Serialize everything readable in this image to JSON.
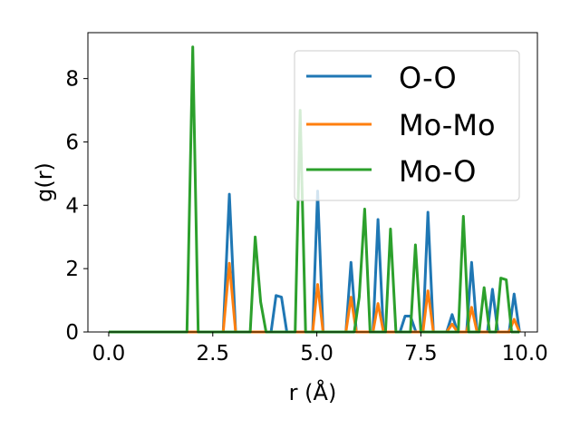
{
  "chart_data": {
    "type": "line",
    "title": "",
    "xlabel": "r (Å)",
    "ylabel": "g(r)",
    "xlim": [
      -0.5,
      10.3
    ],
    "ylim": [
      0,
      9.45
    ],
    "xticks": [
      0.0,
      2.5,
      5.0,
      7.5,
      10.0
    ],
    "xtick_labels": [
      "0.0",
      "2.5",
      "5.0",
      "7.5",
      "10.0"
    ],
    "yticks": [
      0,
      2,
      4,
      6,
      8
    ],
    "ytick_labels": [
      "0",
      "2",
      "4",
      "6",
      "8"
    ],
    "grid": false,
    "legend_position": "top-right",
    "series": [
      {
        "name": "O-O",
        "color": "#1f77b4",
        "points": [
          [
            0.0,
            0
          ],
          [
            2.75,
            0
          ],
          [
            2.9,
            4.35
          ],
          [
            3.05,
            0
          ],
          [
            3.9,
            0
          ],
          [
            4.02,
            1.15
          ],
          [
            4.15,
            1.1
          ],
          [
            4.28,
            0
          ],
          [
            4.9,
            0
          ],
          [
            5.02,
            4.45
          ],
          [
            5.15,
            0
          ],
          [
            5.7,
            0
          ],
          [
            5.82,
            2.2
          ],
          [
            5.95,
            0
          ],
          [
            6.35,
            0
          ],
          [
            6.47,
            3.55
          ],
          [
            6.6,
            0
          ],
          [
            7.0,
            0
          ],
          [
            7.12,
            0.5
          ],
          [
            7.25,
            0.5
          ],
          [
            7.38,
            0
          ],
          [
            7.55,
            0
          ],
          [
            7.67,
            3.78
          ],
          [
            7.8,
            0
          ],
          [
            8.12,
            0
          ],
          [
            8.25,
            0.55
          ],
          [
            8.38,
            0
          ],
          [
            8.6,
            0
          ],
          [
            8.72,
            2.2
          ],
          [
            8.85,
            0
          ],
          [
            9.1,
            0
          ],
          [
            9.22,
            1.35
          ],
          [
            9.35,
            0
          ],
          [
            9.62,
            0
          ],
          [
            9.74,
            1.2
          ],
          [
            9.87,
            0
          ]
        ]
      },
      {
        "name": "Mo-Mo",
        "color": "#ff7f0e",
        "points": [
          [
            0.0,
            0
          ],
          [
            2.75,
            0
          ],
          [
            2.9,
            2.17
          ],
          [
            3.05,
            0
          ],
          [
            4.9,
            0
          ],
          [
            5.02,
            1.5
          ],
          [
            5.15,
            0
          ],
          [
            5.7,
            0
          ],
          [
            5.82,
            1.1
          ],
          [
            5.95,
            0
          ],
          [
            6.35,
            0
          ],
          [
            6.47,
            0.9
          ],
          [
            6.6,
            0
          ],
          [
            7.55,
            0
          ],
          [
            7.67,
            1.3
          ],
          [
            7.8,
            0
          ],
          [
            8.12,
            0
          ],
          [
            8.25,
            0.25
          ],
          [
            8.38,
            0
          ],
          [
            8.6,
            0
          ],
          [
            8.72,
            0.78
          ],
          [
            8.85,
            0
          ],
          [
            9.62,
            0
          ],
          [
            9.74,
            0.4
          ],
          [
            9.87,
            0
          ]
        ]
      },
      {
        "name": "Mo-O",
        "color": "#2ca02c",
        "points": [
          [
            0.0,
            0
          ],
          [
            1.88,
            0
          ],
          [
            2.02,
            9.0
          ],
          [
            2.15,
            0
          ],
          [
            3.4,
            0
          ],
          [
            3.52,
            3.0
          ],
          [
            3.65,
            0.95
          ],
          [
            3.78,
            0
          ],
          [
            4.48,
            0
          ],
          [
            4.6,
            7.0
          ],
          [
            4.73,
            0
          ],
          [
            5.9,
            0
          ],
          [
            6.02,
            1.1
          ],
          [
            6.15,
            3.88
          ],
          [
            6.28,
            0
          ],
          [
            6.65,
            0
          ],
          [
            6.77,
            3.25
          ],
          [
            6.9,
            0
          ],
          [
            7.25,
            0
          ],
          [
            7.37,
            2.75
          ],
          [
            7.5,
            0
          ],
          [
            8.4,
            0
          ],
          [
            8.52,
            3.65
          ],
          [
            8.65,
            0
          ],
          [
            8.9,
            0
          ],
          [
            9.02,
            1.4
          ],
          [
            9.15,
            0
          ],
          [
            9.3,
            0
          ],
          [
            9.42,
            1.7
          ],
          [
            9.55,
            1.65
          ],
          [
            9.68,
            0
          ],
          [
            9.87,
            0
          ]
        ]
      }
    ]
  }
}
